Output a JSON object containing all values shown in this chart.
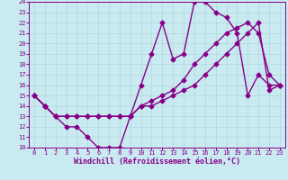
{
  "xlabel": "Windchill (Refroidissement éolien,°C)",
  "xlim": [
    -0.5,
    23.5
  ],
  "ylim": [
    10,
    24
  ],
  "xticks": [
    0,
    1,
    2,
    3,
    4,
    5,
    6,
    7,
    8,
    9,
    10,
    11,
    12,
    13,
    14,
    15,
    16,
    17,
    18,
    19,
    20,
    21,
    22,
    23
  ],
  "yticks": [
    10,
    11,
    12,
    13,
    14,
    15,
    16,
    17,
    18,
    19,
    20,
    21,
    22,
    23,
    24
  ],
  "bg_color": "#c8eaf0",
  "grid_color": "#b0d8e0",
  "line_color": "#880088",
  "line1_x": [
    0,
    1,
    2,
    3,
    4,
    5,
    6,
    7,
    8,
    9,
    10,
    11,
    12,
    13,
    14,
    15,
    16,
    17,
    18,
    19,
    20,
    21,
    22,
    23
  ],
  "line1_y": [
    15,
    14,
    13,
    12,
    12,
    11,
    10,
    10,
    10,
    13,
    16,
    19,
    22,
    18.5,
    19,
    24,
    24,
    23,
    22.5,
    21,
    15,
    17,
    16,
    16
  ],
  "line2_x": [
    0,
    1,
    2,
    3,
    4,
    5,
    6,
    7,
    8,
    9,
    10,
    11,
    12,
    13,
    14,
    15,
    16,
    17,
    18,
    19,
    20,
    21,
    22,
    23
  ],
  "line2_y": [
    15,
    14,
    13,
    13,
    13,
    13,
    13,
    13,
    13,
    13,
    14,
    14.5,
    15,
    15.5,
    16.5,
    18,
    19,
    20,
    21,
    21.5,
    22,
    21,
    17,
    16
  ],
  "line3_x": [
    0,
    1,
    2,
    3,
    4,
    5,
    6,
    7,
    8,
    9,
    10,
    11,
    12,
    13,
    14,
    15,
    16,
    17,
    18,
    19,
    20,
    21,
    22,
    23
  ],
  "line3_y": [
    15,
    14,
    13,
    13,
    13,
    13,
    13,
    13,
    13,
    13,
    14,
    14,
    14.5,
    15,
    15.5,
    16,
    17,
    18,
    19,
    20,
    21,
    22,
    15.5,
    16
  ],
  "marker": "D",
  "markersize": 2.5,
  "linewidth": 1.0,
  "tick_fontsize": 5.0,
  "label_fontsize": 6.0
}
